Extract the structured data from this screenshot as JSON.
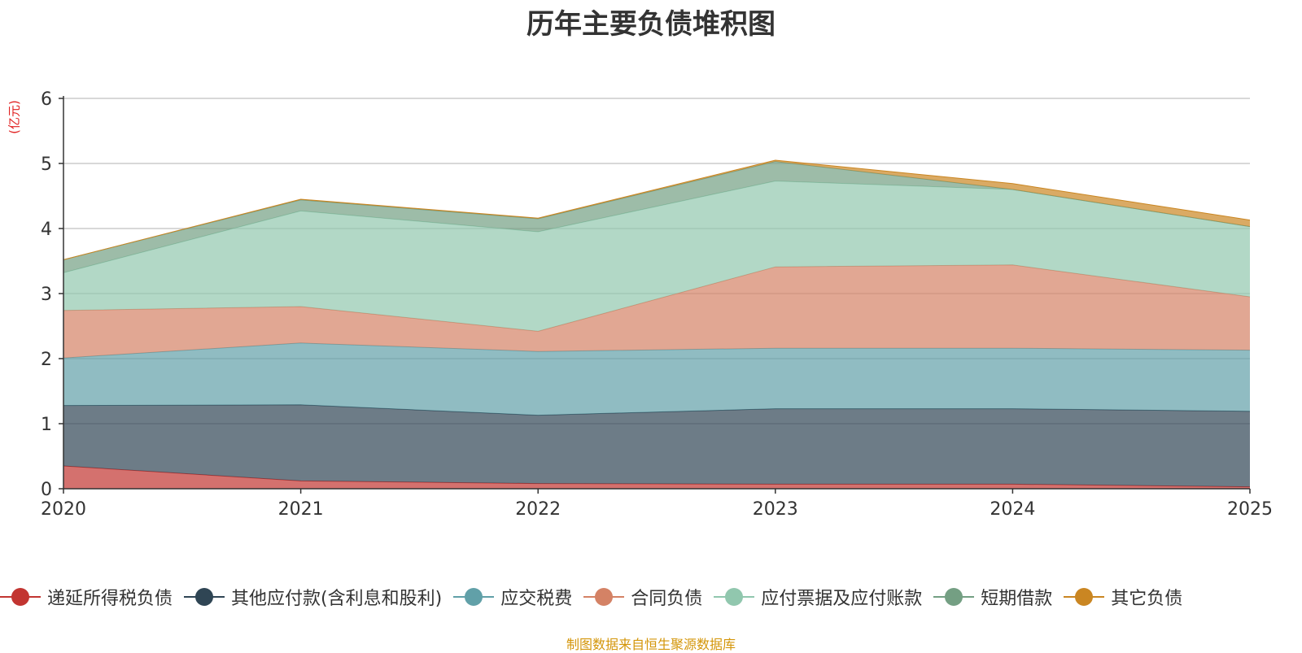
{
  "chart_data": {
    "type": "area",
    "stacked": true,
    "title": "历年主要负债堆积图",
    "ylabel": "(亿元)",
    "xlabel": "",
    "ylim": [
      0,
      6
    ],
    "yticks": [
      "0",
      "1",
      "2",
      "3",
      "4",
      "5",
      "6"
    ],
    "categories": [
      "2020",
      "2021",
      "2022",
      "2023",
      "2024",
      "2025"
    ],
    "grid": true,
    "legend_position": "bottom",
    "series": [
      {
        "name": "递延所得税负债",
        "color": "#c23531",
        "values": [
          0.35,
          0.12,
          0.08,
          0.07,
          0.07,
          0.03
        ]
      },
      {
        "name": "其他应付款(含利息和股利)",
        "color": "#2f4554",
        "values": [
          0.93,
          1.17,
          1.05,
          1.16,
          1.16,
          1.16
        ]
      },
      {
        "name": "应交税费",
        "color": "#61a0a8",
        "values": [
          0.73,
          0.95,
          0.98,
          0.93,
          0.93,
          0.94
        ]
      },
      {
        "name": "合同负债",
        "color": "#d48265",
        "values": [
          0.73,
          0.56,
          0.31,
          1.25,
          1.28,
          0.82
        ]
      },
      {
        "name": "应付票据及应付账款",
        "color": "#91c7ae",
        "values": [
          0.58,
          1.47,
          1.53,
          1.32,
          1.16,
          1.08
        ]
      },
      {
        "name": "短期借款",
        "color": "#749f83",
        "values": [
          0.2,
          0.17,
          0.2,
          0.3,
          0.0,
          0.0
        ]
      },
      {
        "name": "其它负债",
        "color": "#ca8622",
        "values": [
          0.0,
          0.01,
          0.01,
          0.02,
          0.09,
          0.1
        ]
      }
    ],
    "note": "制图数据来自恒生聚源数据库"
  }
}
